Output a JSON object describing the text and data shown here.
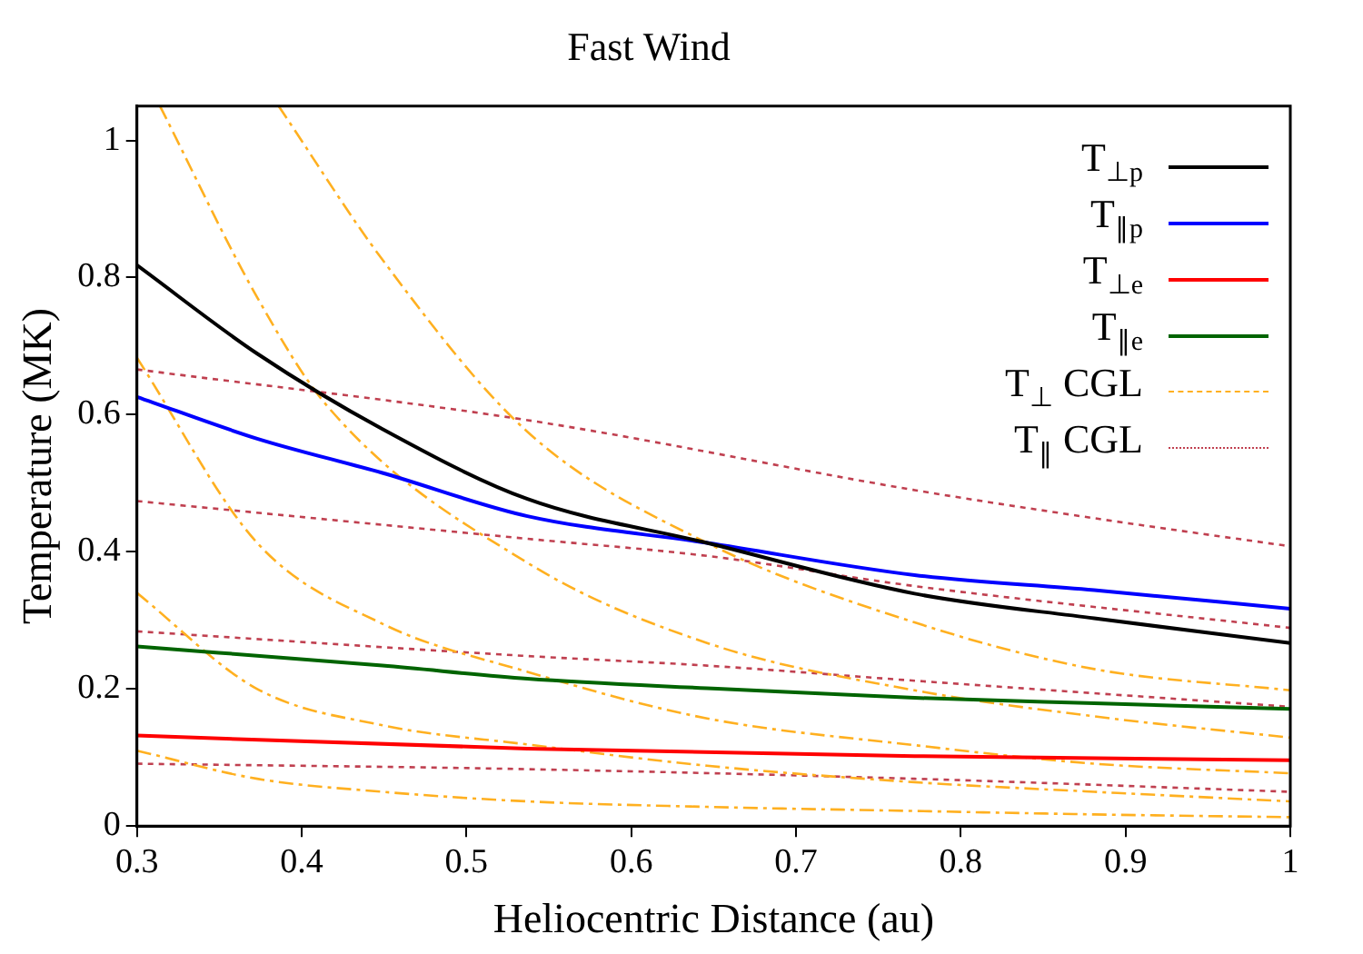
{
  "chart_data": {
    "type": "line",
    "title": "Fast Wind",
    "xlabel": "Heliocentric Distance (au)",
    "ylabel": "Temperature (MK)",
    "xlim": [
      0.3,
      1
    ],
    "ylim": [
      0,
      1.05
    ],
    "xticks": [
      0.3,
      0.4,
      0.5,
      0.6,
      0.7,
      0.8,
      0.9,
      1
    ],
    "yticks": [
      0,
      0.2,
      0.4,
      0.6,
      0.8,
      1
    ],
    "grid": false,
    "legend": "top right",
    "marker": "none",
    "line_style": "solid",
    "series": [
      {
        "name": "T$_{⊥p}$",
        "color": "#000000",
        "x": [
          0.3,
          0.373,
          0.449,
          0.537,
          0.646,
          0.772,
          0.881,
          1
        ],
        "values": [
          0.818,
          0.689,
          0.579,
          0.477,
          0.413,
          0.339,
          0.303,
          0.267
        ]
      },
      {
        "name": "T$_{∥p}$",
        "color": "#0000ff",
        "x": [
          0.3,
          0.373,
          0.449,
          0.537,
          0.646,
          0.772,
          0.881,
          1
        ],
        "values": [
          0.626,
          0.565,
          0.515,
          0.452,
          0.413,
          0.366,
          0.344,
          0.317
        ]
      },
      {
        "name": "T$_{⊥e}$",
        "color": "#ff0000",
        "x": [
          0.3,
          0.537,
          0.772,
          1
        ],
        "values": [
          0.132,
          0.113,
          0.102,
          0.096
        ]
      },
      {
        "name": "T$_{∥e}$",
        "color": "#006400",
        "x": [
          0.3,
          0.449,
          0.537,
          0.646,
          0.772,
          0.881,
          1
        ],
        "values": [
          0.262,
          0.234,
          0.215,
          0.201,
          0.187,
          0.179,
          0.171
        ]
      },
      {
        "name": "T$_{⊥}$ CGL",
        "color": "#ffb020",
        "line_style": "dashed",
        "x": [
          0.314,
          0.373,
          0.415,
          0.537,
          0.646,
          0.772,
          0.881,
          1
        ],
        "values": [
          1.05,
          0.771,
          0.614,
          0.384,
          0.267,
          0.198,
          0.16,
          0.129
        ]
      },
      {
        "color": "#ffb020",
        "line_style": "dashed",
        "x": [
          0.386,
          0.449,
          0.537,
          0.646,
          0.772,
          0.881,
          1
        ],
        "values": [
          1.05,
          0.826,
          0.575,
          0.413,
          0.297,
          0.229,
          0.198
        ]
      },
      {
        "color": "#ffb020",
        "line_style": "dashed",
        "x": [
          0.3,
          0.373,
          0.449,
          0.537,
          0.646,
          0.772,
          0.881,
          1
        ],
        "values": [
          0.683,
          0.413,
          0.295,
          0.225,
          0.157,
          0.118,
          0.091,
          0.077
        ]
      },
      {
        "color": "#ffb020",
        "line_style": "dashed",
        "x": [
          0.3,
          0.373,
          0.449,
          0.537,
          0.646,
          0.772,
          0.881,
          1
        ],
        "values": [
          0.34,
          0.2,
          0.147,
          0.119,
          0.088,
          0.064,
          0.05,
          0.036
        ]
      },
      {
        "color": "#ffb020",
        "line_style": "dashed",
        "x": [
          0.3,
          0.373,
          0.449,
          0.537,
          0.646,
          0.772,
          0.881,
          1
        ],
        "values": [
          0.11,
          0.069,
          0.05,
          0.036,
          0.028,
          0.022,
          0.017,
          0.013
        ]
      },
      {
        "name": "T$_{∥}$ CGL",
        "color": "#c04050",
        "line_style": "dotted",
        "x": [
          0.3,
          0.537,
          0.772,
          0.881,
          1
        ],
        "values": [
          0.666,
          0.592,
          0.49,
          0.449,
          0.408
        ]
      },
      {
        "color": "#c04050",
        "line_style": "dotted",
        "x": [
          0.3,
          0.537,
          0.646,
          0.772,
          1
        ],
        "values": [
          0.474,
          0.419,
          0.394,
          0.35,
          0.289
        ]
      },
      {
        "color": "#c04050",
        "line_style": "dotted",
        "x": [
          0.3,
          0.537,
          0.646,
          0.772,
          1
        ],
        "values": [
          0.284,
          0.248,
          0.234,
          0.212,
          0.174
        ]
      },
      {
        "color": "#c04050",
        "line_style": "dotted",
        "x": [
          0.3,
          0.537,
          0.772,
          1
        ],
        "values": [
          0.091,
          0.083,
          0.069,
          0.05
        ]
      }
    ]
  }
}
